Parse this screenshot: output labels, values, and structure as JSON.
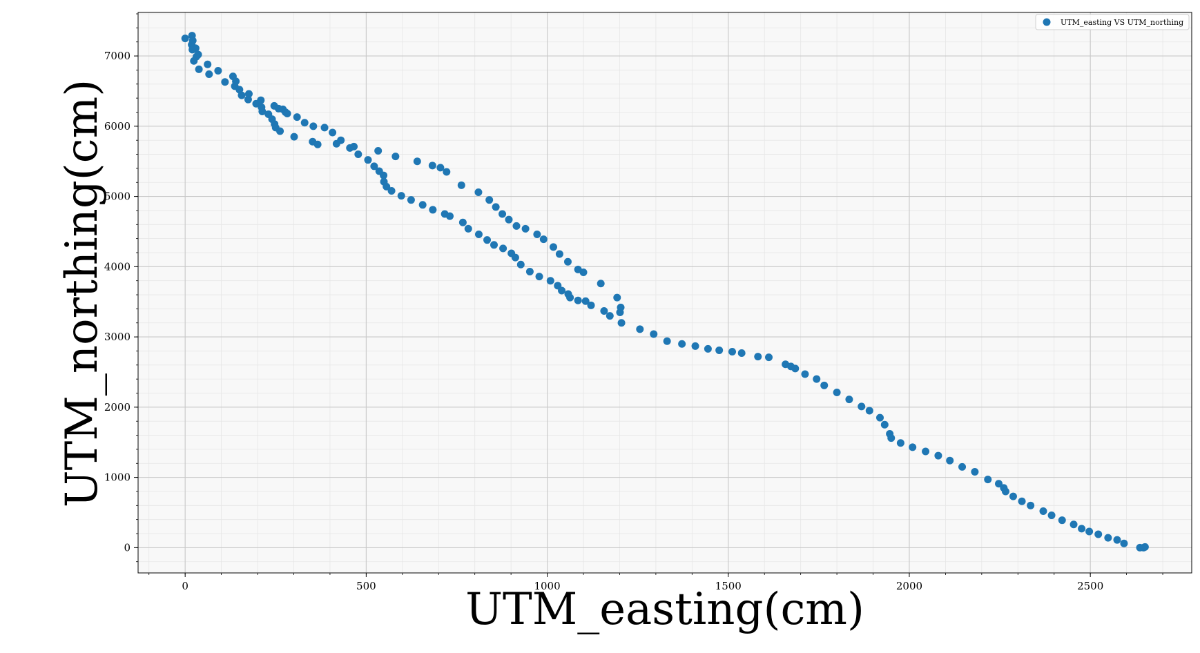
{
  "chart_data": {
    "type": "scatter",
    "title": "",
    "xlabel": "UTM_easting(cm)",
    "ylabel": "UTM_northing(cm)",
    "xlim": [
      -130,
      2780
    ],
    "ylim": [
      -360,
      7620
    ],
    "x_ticks": [
      0,
      500,
      1000,
      1500,
      2000,
      2500
    ],
    "y_ticks": [
      0,
      1000,
      2000,
      3000,
      4000,
      5000,
      6000,
      7000
    ],
    "x_tick_labels": [
      "0",
      "500",
      "1000",
      "1500",
      "2000",
      "2500"
    ],
    "y_tick_labels": [
      "0",
      "1000",
      "2000",
      "3000",
      "4000",
      "5000",
      "6000",
      "7000"
    ],
    "grid": true,
    "minor_grid": true,
    "legend_position": "top-right",
    "series": [
      {
        "name": "UTM_easting VS UTM_northing",
        "color": "#1f77b4",
        "points": [
          [
            0,
            7250
          ],
          [
            19,
            7290
          ],
          [
            21,
            7220
          ],
          [
            18,
            7160
          ],
          [
            29,
            7110
          ],
          [
            20,
            7090
          ],
          [
            36,
            7020
          ],
          [
            31,
            6990
          ],
          [
            24,
            6930
          ],
          [
            38,
            6810
          ],
          [
            62,
            6880
          ],
          [
            66,
            6740
          ],
          [
            91,
            6790
          ],
          [
            110,
            6630
          ],
          [
            132,
            6710
          ],
          [
            137,
            6570
          ],
          [
            140,
            6640
          ],
          [
            150,
            6520
          ],
          [
            156,
            6440
          ],
          [
            174,
            6380
          ],
          [
            176,
            6460
          ],
          [
            196,
            6320
          ],
          [
            209,
            6370
          ],
          [
            211,
            6270
          ],
          [
            213,
            6210
          ],
          [
            230,
            6170
          ],
          [
            240,
            6100
          ],
          [
            246,
            6290
          ],
          [
            247,
            6030
          ],
          [
            250,
            5980
          ],
          [
            258,
            6250
          ],
          [
            262,
            5930
          ],
          [
            270,
            6240
          ],
          [
            277,
            6200
          ],
          [
            282,
            6180
          ],
          [
            301,
            5850
          ],
          [
            309,
            6130
          ],
          [
            330,
            6050
          ],
          [
            352,
            5780
          ],
          [
            354,
            6000
          ],
          [
            366,
            5740
          ],
          [
            385,
            5980
          ],
          [
            407,
            5910
          ],
          [
            418,
            5750
          ],
          [
            430,
            5800
          ],
          [
            455,
            5690
          ],
          [
            466,
            5710
          ],
          [
            478,
            5600
          ],
          [
            505,
            5520
          ],
          [
            522,
            5430
          ],
          [
            533,
            5650
          ],
          [
            536,
            5360
          ],
          [
            548,
            5300
          ],
          [
            549,
            5210
          ],
          [
            556,
            5140
          ],
          [
            570,
            5080
          ],
          [
            581,
            5570
          ],
          [
            597,
            5010
          ],
          [
            624,
            4950
          ],
          [
            641,
            5500
          ],
          [
            656,
            4880
          ],
          [
            683,
            5440
          ],
          [
            684,
            4810
          ],
          [
            705,
            5410
          ],
          [
            717,
            4750
          ],
          [
            722,
            5350
          ],
          [
            731,
            4720
          ],
          [
            763,
            5160
          ],
          [
            767,
            4630
          ],
          [
            782,
            4540
          ],
          [
            810,
            5060
          ],
          [
            811,
            4460
          ],
          [
            834,
            4380
          ],
          [
            840,
            4950
          ],
          [
            853,
            4310
          ],
          [
            858,
            4850
          ],
          [
            876,
            4750
          ],
          [
            878,
            4260
          ],
          [
            894,
            4670
          ],
          [
            901,
            4190
          ],
          [
            912,
            4130
          ],
          [
            915,
            4580
          ],
          [
            927,
            4030
          ],
          [
            940,
            4540
          ],
          [
            952,
            3930
          ],
          [
            972,
            4460
          ],
          [
            978,
            3860
          ],
          [
            990,
            4390
          ],
          [
            1009,
            3800
          ],
          [
            1017,
            4280
          ],
          [
            1029,
            3730
          ],
          [
            1034,
            4180
          ],
          [
            1040,
            3660
          ],
          [
            1057,
            4070
          ],
          [
            1058,
            3610
          ],
          [
            1063,
            3560
          ],
          [
            1085,
            3520
          ],
          [
            1085,
            3960
          ],
          [
            1100,
            3920
          ],
          [
            1106,
            3510
          ],
          [
            1121,
            3450
          ],
          [
            1148,
            3760
          ],
          [
            1157,
            3370
          ],
          [
            1173,
            3300
          ],
          [
            1193,
            3560
          ],
          [
            1201,
            3350
          ],
          [
            1203,
            3420
          ],
          [
            1205,
            3200
          ],
          [
            1256,
            3110
          ],
          [
            1294,
            3040
          ],
          [
            1331,
            2940
          ],
          [
            1372,
            2900
          ],
          [
            1409,
            2870
          ],
          [
            1444,
            2830
          ],
          [
            1475,
            2810
          ],
          [
            1511,
            2790
          ],
          [
            1537,
            2770
          ],
          [
            1582,
            2720
          ],
          [
            1612,
            2710
          ],
          [
            1658,
            2610
          ],
          [
            1673,
            2580
          ],
          [
            1685,
            2550
          ],
          [
            1712,
            2470
          ],
          [
            1744,
            2400
          ],
          [
            1765,
            2310
          ],
          [
            1800,
            2210
          ],
          [
            1834,
            2110
          ],
          [
            1868,
            2010
          ],
          [
            1890,
            1950
          ],
          [
            1919,
            1850
          ],
          [
            1932,
            1750
          ],
          [
            1946,
            1620
          ],
          [
            1950,
            1560
          ],
          [
            1976,
            1490
          ],
          [
            2009,
            1430
          ],
          [
            2045,
            1370
          ],
          [
            2080,
            1310
          ],
          [
            2112,
            1240
          ],
          [
            2146,
            1150
          ],
          [
            2181,
            1080
          ],
          [
            2217,
            970
          ],
          [
            2247,
            910
          ],
          [
            2261,
            850
          ],
          [
            2266,
            800
          ],
          [
            2287,
            730
          ],
          [
            2311,
            660
          ],
          [
            2335,
            600
          ],
          [
            2370,
            520
          ],
          [
            2393,
            460
          ],
          [
            2422,
            390
          ],
          [
            2454,
            330
          ],
          [
            2476,
            270
          ],
          [
            2497,
            230
          ],
          [
            2522,
            190
          ],
          [
            2549,
            140
          ],
          [
            2574,
            110
          ],
          [
            2593,
            60
          ],
          [
            2637,
            0
          ],
          [
            2647,
            0
          ],
          [
            2651,
            10
          ]
        ]
      }
    ]
  }
}
